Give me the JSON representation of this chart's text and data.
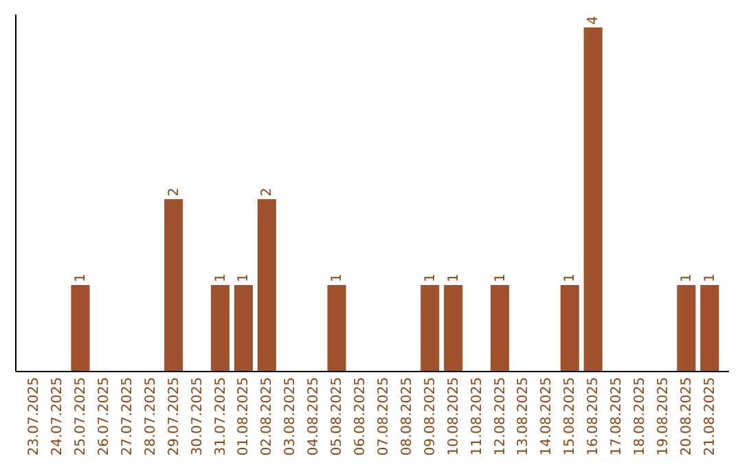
{
  "chart_data": {
    "type": "bar",
    "categories": [
      "23.07.2025",
      "24.07.2025",
      "25.07.2025",
      "26.07.2025",
      "27.07.2025",
      "28.07.2025",
      "29.07.2025",
      "30.07.2025",
      "31.07.2025",
      "01.08.2025",
      "02.08.2025",
      "03.08.2025",
      "04.08.2025",
      "05.08.2025",
      "06.08.2025",
      "07.08.2025",
      "08.08.2025",
      "09.08.2025",
      "10.08.2025",
      "11.08.2025",
      "12.08.2025",
      "13.08.2025",
      "14.08.2025",
      "15.08.2025",
      "16.08.2025",
      "17.08.2025",
      "18.08.2025",
      "19.08.2025",
      "20.08.2025",
      "21.08.2025"
    ],
    "values": [
      0,
      0,
      1,
      0,
      0,
      0,
      2,
      0,
      1,
      1,
      2,
      0,
      0,
      1,
      0,
      0,
      0,
      1,
      1,
      0,
      1,
      0,
      0,
      1,
      4,
      0,
      0,
      0,
      1,
      1
    ],
    "value_labels": [
      null,
      null,
      "1",
      null,
      null,
      null,
      "2",
      null,
      "1",
      "1",
      "2",
      null,
      null,
      "1",
      null,
      null,
      null,
      "1",
      "1",
      null,
      "1",
      null,
      null,
      "1",
      "4",
      null,
      null,
      null,
      "1",
      "1"
    ],
    "color": "#a0522d",
    "grid": false,
    "tick_labels": "x"
  }
}
